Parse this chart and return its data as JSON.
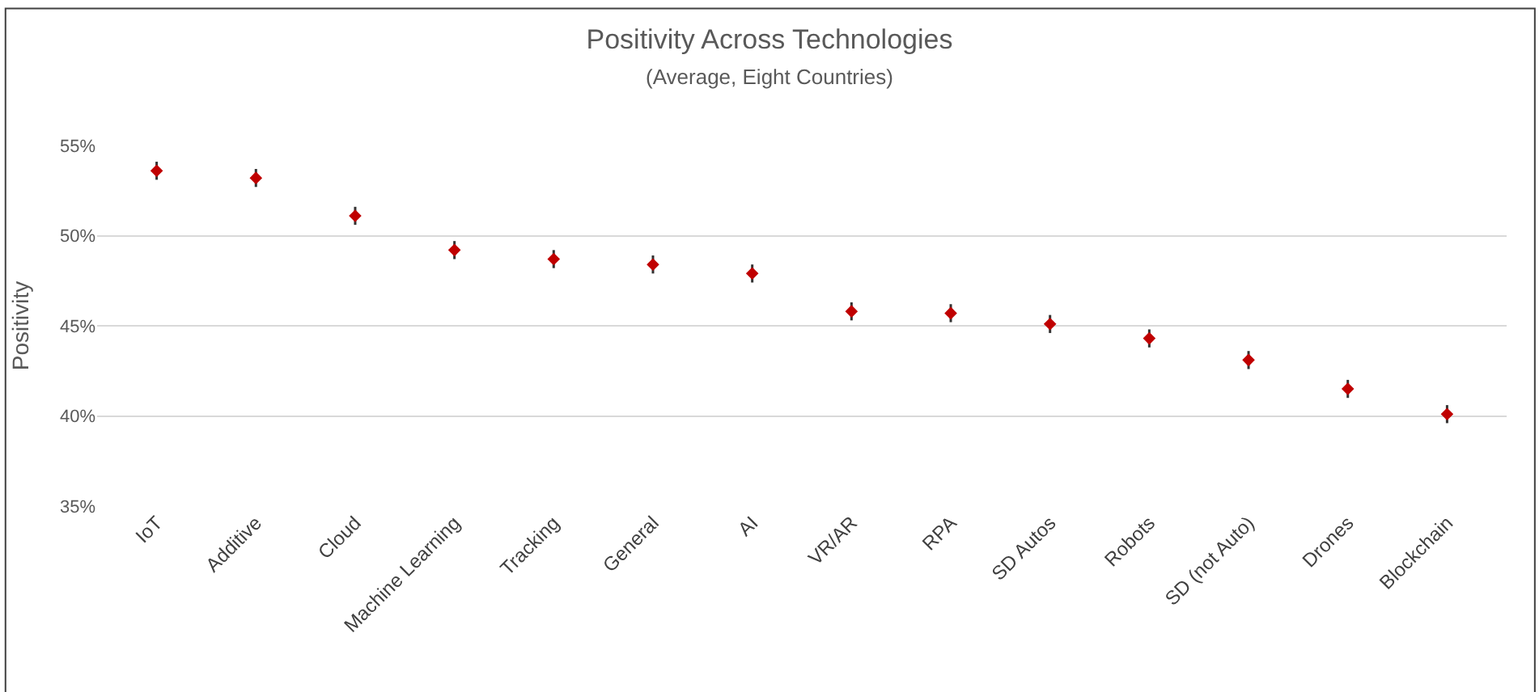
{
  "chart_data": {
    "type": "scatter",
    "title": "Positivity Across Technologies",
    "subtitle": "(Average, Eight Countries)",
    "ylabel": "Positivity",
    "categories": [
      "IoT",
      "Additive",
      "Cloud",
      "Machine Learning",
      "Tracking",
      "General",
      "AI",
      "VR/AR",
      "RPA",
      "SD Autos",
      "Robots",
      "SD (not Auto)",
      "Drones",
      "Blockchain"
    ],
    "series": [
      {
        "color": "#c00000",
        "values": [
          53.6,
          53.2,
          51.1,
          49.2,
          48.7,
          48.4,
          47.9,
          45.8,
          45.7,
          45.1,
          44.3,
          43.1,
          41.5,
          40.1
        ],
        "errors": [
          0.5,
          0.5,
          0.5,
          0.5,
          0.5,
          0.5,
          0.5,
          0.5,
          0.5,
          0.5,
          0.5,
          0.5,
          0.5,
          0.5
        ]
      }
    ],
    "ylim": [
      35,
      55
    ],
    "yticks": [
      {
        "value": 35,
        "label": "35%"
      },
      {
        "value": 40,
        "label": "40%"
      },
      {
        "value": 45,
        "label": "45%"
      },
      {
        "value": 50,
        "label": "50%"
      },
      {
        "value": 55,
        "label": "55%"
      }
    ],
    "grid": "y",
    "legend": false,
    "marker": "diamond"
  }
}
